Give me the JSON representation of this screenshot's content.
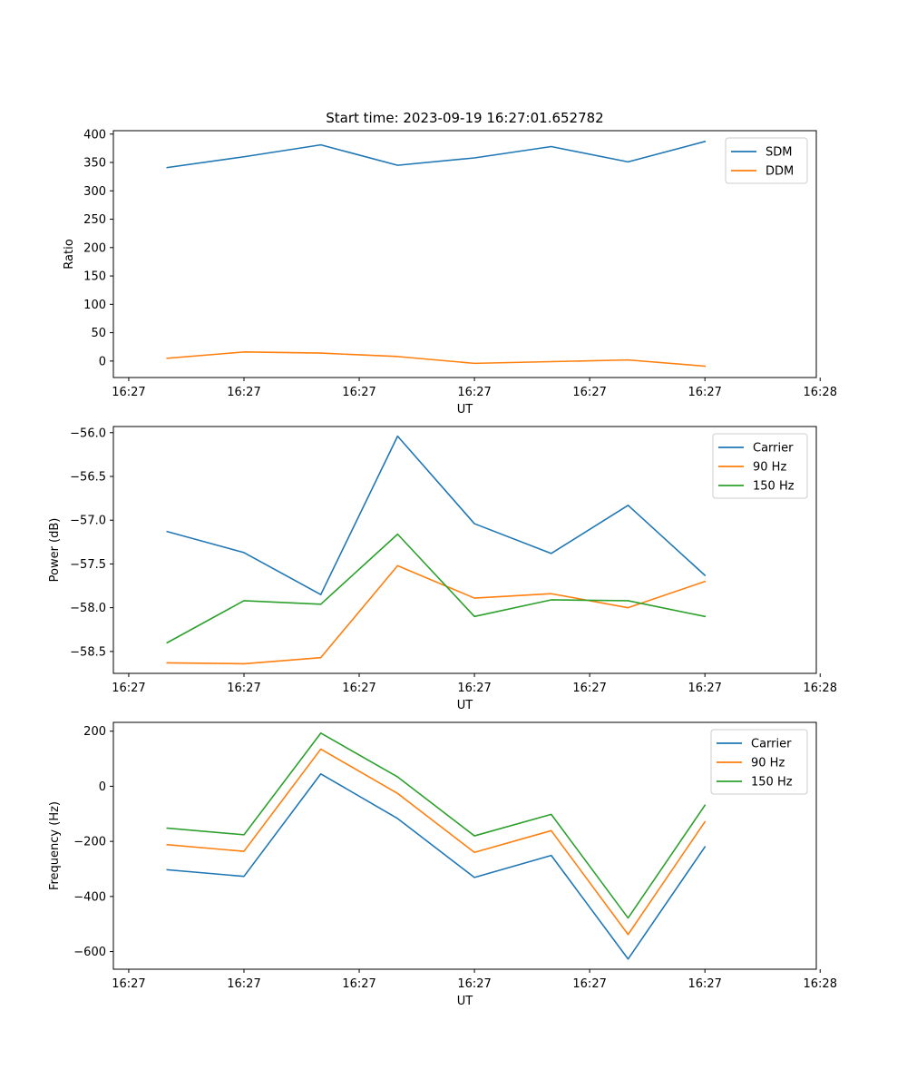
{
  "chart_data": [
    {
      "type": "line",
      "title": "Start time: 2023-09-19 16:27:01.652782",
      "xlabel": "UT",
      "ylabel": "Ratio",
      "x": [
        1,
        2,
        3,
        4,
        5,
        6,
        7,
        8
      ],
      "xlim": [
        0.3,
        9.45
      ],
      "x_ticks": [
        0.5,
        2,
        3.5,
        5,
        6.5,
        8,
        9.5
      ],
      "x_tick_labels": [
        "16:27",
        "16:27",
        "16:27",
        "16:27",
        "16:27",
        "16:27",
        "16:28"
      ],
      "ylim": [
        -29,
        406
      ],
      "y_ticks": [
        0,
        50,
        100,
        150,
        200,
        250,
        300,
        350,
        400
      ],
      "legend_position": "upper right",
      "series": [
        {
          "name": "SDM",
          "color": "#1f77b4",
          "values": [
            341,
            360,
            381,
            345,
            358,
            378,
            351,
            387
          ]
        },
        {
          "name": "DDM",
          "color": "#ff7f0e",
          "values": [
            5,
            16,
            14,
            8,
            -4,
            -1,
            2,
            -9
          ]
        }
      ]
    },
    {
      "type": "line",
      "title": "",
      "xlabel": "UT",
      "ylabel": "Power (dB)",
      "x": [
        1,
        2,
        3,
        4,
        5,
        6,
        7,
        8
      ],
      "xlim": [
        0.3,
        9.45
      ],
      "x_ticks": [
        0.5,
        2,
        3.5,
        5,
        6.5,
        8,
        9.5
      ],
      "x_tick_labels": [
        "16:27",
        "16:27",
        "16:27",
        "16:27",
        "16:27",
        "16:27",
        "16:28"
      ],
      "ylim": [
        -58.75,
        -55.93
      ],
      "y_ticks": [
        -58.5,
        -58.0,
        -57.5,
        -57.0,
        -56.5,
        -56.0
      ],
      "y_tick_labels": [
        "−58.5",
        "−58.0",
        "−57.5",
        "−57.0",
        "−56.5",
        "−56.0"
      ],
      "legend_position": "upper right",
      "series": [
        {
          "name": "Carrier",
          "color": "#1f77b4",
          "values": [
            -57.13,
            -57.37,
            -57.85,
            -56.04,
            -57.04,
            -57.38,
            -56.83,
            -57.63
          ]
        },
        {
          "name": "90 Hz",
          "color": "#ff7f0e",
          "values": [
            -58.63,
            -58.64,
            -58.57,
            -57.52,
            -57.89,
            -57.84,
            -58.0,
            -57.7
          ]
        },
        {
          "name": "150 Hz",
          "color": "#2ca02c",
          "values": [
            -58.4,
            -57.92,
            -57.96,
            -57.16,
            -58.1,
            -57.91,
            -57.92,
            -58.1
          ]
        }
      ]
    },
    {
      "type": "line",
      "title": "",
      "xlabel": "UT",
      "ylabel": "Frequency (Hz)",
      "x": [
        1,
        2,
        3,
        4,
        5,
        6,
        7,
        8
      ],
      "xlim": [
        0.3,
        9.45
      ],
      "x_ticks": [
        0.5,
        2,
        3.5,
        5,
        6.5,
        8,
        9.5
      ],
      "x_tick_labels": [
        "16:27",
        "16:27",
        "16:27",
        "16:27",
        "16:27",
        "16:27",
        "16:28"
      ],
      "ylim": [
        -664,
        232
      ],
      "y_ticks": [
        -600,
        -400,
        -200,
        0,
        200
      ],
      "y_tick_labels": [
        "−600",
        "−400",
        "−200",
        "0",
        "200"
      ],
      "legend_position": "upper right",
      "series": [
        {
          "name": "Carrier",
          "color": "#1f77b4",
          "values": [
            -303,
            -327,
            45,
            -117,
            -331,
            -251,
            -627,
            -220
          ]
        },
        {
          "name": "90 Hz",
          "color": "#ff7f0e",
          "values": [
            -212,
            -236,
            135,
            -26,
            -240,
            -161,
            -538,
            -129
          ]
        },
        {
          "name": "150 Hz",
          "color": "#2ca02c",
          "values": [
            -152,
            -176,
            193,
            34,
            -180,
            -102,
            -478,
            -69
          ]
        }
      ]
    }
  ]
}
